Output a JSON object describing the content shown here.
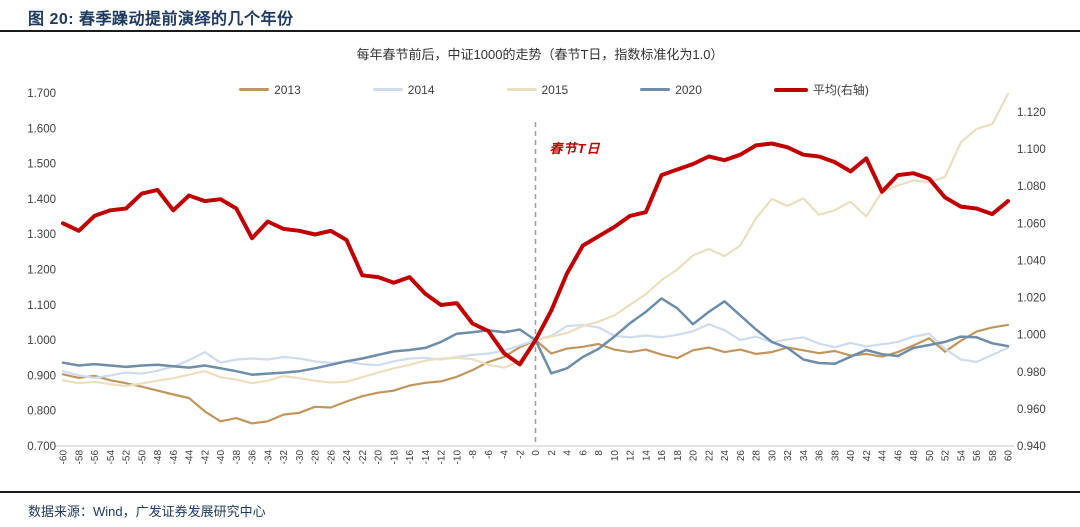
{
  "figure": {
    "title": "图 20:  春季躁动提前演绎的几个年份",
    "source": "数据来源：Wind，广发证券发展研究中心"
  },
  "chart_data": {
    "type": "line",
    "title": "每年春节前后，中证1000的走势（春节T日，指数标准化为1.0）",
    "annotation": "春节T日",
    "annotation_color": "#C00000",
    "legend_position": "top",
    "grid": false,
    "x_axis": {
      "label_rotation": -90,
      "marker_line_x": 0
    },
    "left_axis": {
      "min": 0.7,
      "max": 1.7,
      "step": 0.1
    },
    "right_axis": {
      "min": 0.94,
      "max": 1.12,
      "step": 0.02
    },
    "x": [
      -60,
      -58,
      -56,
      -54,
      -52,
      -50,
      -48,
      -46,
      -44,
      -42,
      -40,
      -38,
      -36,
      -34,
      -32,
      -30,
      -28,
      -26,
      -24,
      -22,
      -20,
      -18,
      -16,
      -14,
      -12,
      -10,
      -8,
      -6,
      -4,
      -2,
      0,
      2,
      4,
      6,
      8,
      10,
      12,
      14,
      16,
      18,
      20,
      22,
      24,
      26,
      28,
      30,
      32,
      34,
      36,
      38,
      40,
      42,
      44,
      46,
      48,
      50,
      52,
      54,
      56,
      58,
      60
    ],
    "series": [
      {
        "name": "2013",
        "axis": "left",
        "color": "#C0965C",
        "width": 2.2,
        "values": [
          0.903,
          0.893,
          0.899,
          0.886,
          0.878,
          0.868,
          0.857,
          0.846,
          0.836,
          0.798,
          0.77,
          0.779,
          0.764,
          0.77,
          0.789,
          0.794,
          0.811,
          0.809,
          0.826,
          0.841,
          0.851,
          0.857,
          0.871,
          0.879,
          0.883,
          0.896,
          0.915,
          0.938,
          0.952,
          0.98,
          1.0,
          0.962,
          0.976,
          0.981,
          0.989,
          0.973,
          0.966,
          0.973,
          0.959,
          0.949,
          0.971,
          0.979,
          0.966,
          0.973,
          0.961,
          0.966,
          0.979,
          0.971,
          0.963,
          0.969,
          0.956,
          0.961,
          0.953,
          0.966,
          0.985,
          1.005,
          0.967,
          0.998,
          1.024,
          1.036,
          1.043
        ]
      },
      {
        "name": "2014",
        "axis": "left",
        "color": "#CFDCEE",
        "width": 2.2,
        "values": [
          0.912,
          0.9,
          0.893,
          0.9,
          0.908,
          0.905,
          0.913,
          0.925,
          0.943,
          0.966,
          0.936,
          0.945,
          0.948,
          0.945,
          0.952,
          0.948,
          0.94,
          0.935,
          0.94,
          0.932,
          0.929,
          0.94,
          0.948,
          0.95,
          0.945,
          0.952,
          0.958,
          0.962,
          0.97,
          0.985,
          1.0,
          1.012,
          1.04,
          1.043,
          1.036,
          1.012,
          1.008,
          1.013,
          1.008,
          1.015,
          1.025,
          1.045,
          1.028,
          1.0,
          1.01,
          0.994,
          1.002,
          1.008,
          0.99,
          0.98,
          0.992,
          0.982,
          0.988,
          0.995,
          1.01,
          1.018,
          0.975,
          0.945,
          0.938,
          0.958,
          0.978
        ]
      },
      {
        "name": "2015",
        "axis": "left",
        "color": "#EBDFC0",
        "width": 2.2,
        "values": [
          0.886,
          0.878,
          0.882,
          0.875,
          0.87,
          0.877,
          0.885,
          0.892,
          0.902,
          0.912,
          0.895,
          0.888,
          0.878,
          0.885,
          0.898,
          0.892,
          0.885,
          0.88,
          0.882,
          0.895,
          0.908,
          0.92,
          0.93,
          0.942,
          0.948,
          0.95,
          0.946,
          0.93,
          0.922,
          0.94,
          1.0,
          1.01,
          1.02,
          1.04,
          1.052,
          1.07,
          1.1,
          1.13,
          1.17,
          1.2,
          1.24,
          1.258,
          1.238,
          1.268,
          1.345,
          1.4,
          1.38,
          1.402,
          1.355,
          1.368,
          1.392,
          1.35,
          1.42,
          1.438,
          1.452,
          1.448,
          1.462,
          1.56,
          1.598,
          1.612,
          1.698
        ]
      },
      {
        "name": "2020",
        "axis": "left",
        "color": "#6E8DA8",
        "width": 2.5,
        "values": [
          0.936,
          0.928,
          0.932,
          0.928,
          0.924,
          0.928,
          0.93,
          0.926,
          0.922,
          0.928,
          0.92,
          0.912,
          0.902,
          0.905,
          0.908,
          0.912,
          0.92,
          0.93,
          0.94,
          0.948,
          0.958,
          0.968,
          0.972,
          0.978,
          0.995,
          1.018,
          1.022,
          1.028,
          1.022,
          1.03,
          1.0,
          0.906,
          0.92,
          0.952,
          0.975,
          1.01,
          1.048,
          1.08,
          1.118,
          1.09,
          1.045,
          1.08,
          1.11,
          1.07,
          1.03,
          0.995,
          0.978,
          0.945,
          0.935,
          0.933,
          0.953,
          0.972,
          0.96,
          0.955,
          0.978,
          0.986,
          0.995,
          1.01,
          1.008,
          0.991,
          0.983
        ]
      },
      {
        "name": "平均(右轴)",
        "axis": "right",
        "color": "#C00000",
        "width": 4,
        "values": [
          1.06,
          1.056,
          1.064,
          1.067,
          1.068,
          1.076,
          1.078,
          1.067,
          1.075,
          1.072,
          1.073,
          1.068,
          1.052,
          1.061,
          1.057,
          1.056,
          1.054,
          1.056,
          1.051,
          1.032,
          1.031,
          1.028,
          1.031,
          1.022,
          1.016,
          1.017,
          1.006,
          1.002,
          0.99,
          0.984,
          0.997,
          1.013,
          1.033,
          1.048,
          1.053,
          1.058,
          1.064,
          1.066,
          1.086,
          1.089,
          1.092,
          1.096,
          1.094,
          1.097,
          1.102,
          1.103,
          1.101,
          1.097,
          1.096,
          1.093,
          1.088,
          1.095,
          1.077,
          1.086,
          1.087,
          1.084,
          1.074,
          1.069,
          1.068,
          1.065,
          1.072
        ]
      }
    ]
  }
}
